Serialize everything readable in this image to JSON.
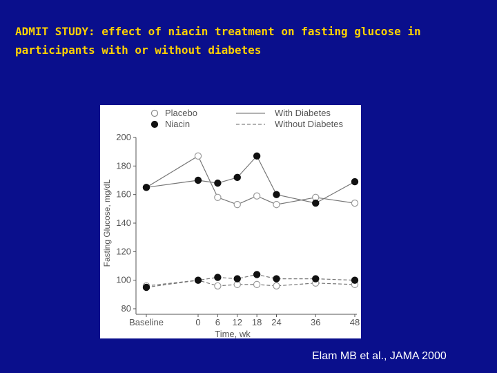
{
  "slide": {
    "title_line1": "ADMIT STUDY: effect of niacin treatment on fasting glucose in",
    "title_line2": "participants with or without diabetes",
    "citation": "Elam MB et al., JAMA 2000",
    "colors": {
      "background": "#0a0f8c",
      "title": "#ffd200",
      "citation": "#ffffff"
    }
  },
  "chart_data": {
    "type": "line",
    "xlabel": "Time, wk",
    "ylabel": "Fasting Glucose, mg/dL",
    "ylim": [
      80,
      200
    ],
    "yticks": [
      80,
      100,
      120,
      140,
      160,
      180,
      200
    ],
    "x_tick_labels": [
      "Baseline",
      "0",
      "6",
      "12",
      "18",
      "24",
      "36",
      "48"
    ],
    "grid": false,
    "legend_position": "top",
    "legend": {
      "markers": [
        {
          "label": "Placebo",
          "fill": "open"
        },
        {
          "label": "Niacin",
          "fill": "filled"
        }
      ],
      "lines": [
        {
          "label": "With Diabetes",
          "style": "solid"
        },
        {
          "label": "Without Diabetes",
          "style": "dashed"
        }
      ]
    },
    "series": [
      {
        "name": "Placebo · With Diabetes",
        "marker": "open",
        "line": "solid",
        "x": [
          "Baseline",
          0,
          6,
          12,
          18,
          24,
          36,
          48
        ],
        "values": [
          165,
          187,
          158,
          153,
          159,
          153,
          158,
          154
        ]
      },
      {
        "name": "Niacin · With Diabetes",
        "marker": "filled",
        "line": "solid",
        "x": [
          "Baseline",
          0,
          6,
          12,
          18,
          24,
          36,
          48
        ],
        "values": [
          165,
          170,
          168,
          172,
          187,
          160,
          154,
          169
        ]
      },
      {
        "name": "Placebo · Without Diabetes",
        "marker": "open",
        "line": "dashed",
        "x": [
          "Baseline",
          0,
          6,
          12,
          18,
          24,
          36,
          48
        ],
        "values": [
          96,
          100,
          96,
          97,
          97,
          96,
          98,
          97
        ]
      },
      {
        "name": "Niacin · Without Diabetes",
        "marker": "filled",
        "line": "dashed",
        "x": [
          "Baseline",
          0,
          6,
          12,
          18,
          24,
          36,
          48
        ],
        "values": [
          95,
          100,
          102,
          101,
          104,
          101,
          101,
          100
        ]
      }
    ]
  }
}
